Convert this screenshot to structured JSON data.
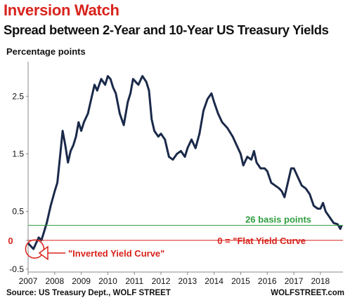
{
  "header": {
    "title": "Inversion Watch",
    "subtitle": "Spread between 2-Year and 10-Year US Treasury Yields"
  },
  "footer": {
    "source": "Source: US Treasury Dept., WOLF STREET",
    "brand": "WOLFSTREET.com"
  },
  "colors": {
    "line": "#1b2a4a",
    "title": "#d9231c",
    "green": "#2e9e3e",
    "red": "#d9231c"
  },
  "chart_data": {
    "type": "line",
    "title": "Spread between 2-Year and 10-Year US Treasury Yields",
    "ylabel": "Percentage points",
    "xlabel": "",
    "ylim": [
      -0.55,
      3.1
    ],
    "xlim": [
      2007.0,
      2018.85
    ],
    "y_ticks": [
      -0.5,
      0,
      0.5,
      1.5,
      2.5
    ],
    "y_tick_labels": [
      "-0.5",
      "0",
      "0.5",
      "1.5",
      "2.5"
    ],
    "x_ticks": [
      2007,
      2008,
      2009,
      2010,
      2011,
      2012,
      2013,
      2014,
      2015,
      2016,
      2017,
      2018
    ],
    "x_tick_labels": [
      "2007",
      "2008",
      "2009",
      "2010",
      "2011",
      "2012",
      "2013",
      "2014",
      "2015",
      "2016",
      "2017",
      "2018"
    ],
    "grid": false,
    "series": [
      {
        "x": [
          2007.0,
          2007.1,
          2007.2,
          2007.3,
          2007.4,
          2007.5,
          2007.6,
          2007.7,
          2007.85,
          2008.0,
          2008.1,
          2008.2,
          2008.3,
          2008.4,
          2008.5,
          2008.6,
          2008.7,
          2008.8,
          2008.9,
          2009.0,
          2009.1,
          2009.25,
          2009.4,
          2009.5,
          2009.6,
          2009.75,
          2009.9,
          2010.0,
          2010.1,
          2010.2,
          2010.3,
          2010.45,
          2010.6,
          2010.75,
          2010.85,
          2010.95,
          2011.05,
          2011.15,
          2011.3,
          2011.45,
          2011.55,
          2011.65,
          2011.75,
          2011.9,
          2012.0,
          2012.15,
          2012.3,
          2012.45,
          2012.6,
          2012.75,
          2012.9,
          2013.0,
          2013.15,
          2013.3,
          2013.45,
          2013.6,
          2013.75,
          2013.9,
          2014.0,
          2014.15,
          2014.3,
          2014.5,
          2014.7,
          2014.85,
          2015.0,
          2015.1,
          2015.25,
          2015.4,
          2015.5,
          2015.6,
          2015.75,
          2015.9,
          2016.0,
          2016.15,
          2016.3,
          2016.45,
          2016.55,
          2016.65,
          2016.8,
          2016.9,
          2017.0,
          2017.15,
          2017.3,
          2017.45,
          2017.6,
          2017.75,
          2017.9,
          2018.0,
          2018.1,
          2018.2,
          2018.35,
          2018.5,
          2018.65,
          2018.75,
          2018.8
        ],
        "values": [
          -0.05,
          -0.1,
          -0.15,
          -0.05,
          0.05,
          0.0,
          0.15,
          0.3,
          0.6,
          0.85,
          1.0,
          1.45,
          1.9,
          1.65,
          1.35,
          1.55,
          1.65,
          1.8,
          2.05,
          1.9,
          2.05,
          2.2,
          2.5,
          2.7,
          2.6,
          2.8,
          2.7,
          2.85,
          2.8,
          2.65,
          2.55,
          2.2,
          2.0,
          2.4,
          2.55,
          2.8,
          2.75,
          2.7,
          2.85,
          2.75,
          2.6,
          2.1,
          1.9,
          1.8,
          1.85,
          1.75,
          1.45,
          1.4,
          1.5,
          1.55,
          1.45,
          1.6,
          1.75,
          1.6,
          1.85,
          2.25,
          2.45,
          2.55,
          2.4,
          2.2,
          2.05,
          1.95,
          1.8,
          1.65,
          1.5,
          1.3,
          1.45,
          1.4,
          1.55,
          1.35,
          1.25,
          1.25,
          1.2,
          1.0,
          0.95,
          0.9,
          0.85,
          0.75,
          1.05,
          1.25,
          1.25,
          1.1,
          0.95,
          0.9,
          0.8,
          0.6,
          0.55,
          0.55,
          0.65,
          0.5,
          0.4,
          0.3,
          0.28,
          0.2,
          0.26
        ]
      }
    ],
    "annotations": {
      "basis_points": "26 basis points",
      "flat_curve": "0 = \"Flat Yield Curve",
      "inverted_curve": "\"Inverted Yield Curve\"",
      "zero_label": "0"
    }
  }
}
